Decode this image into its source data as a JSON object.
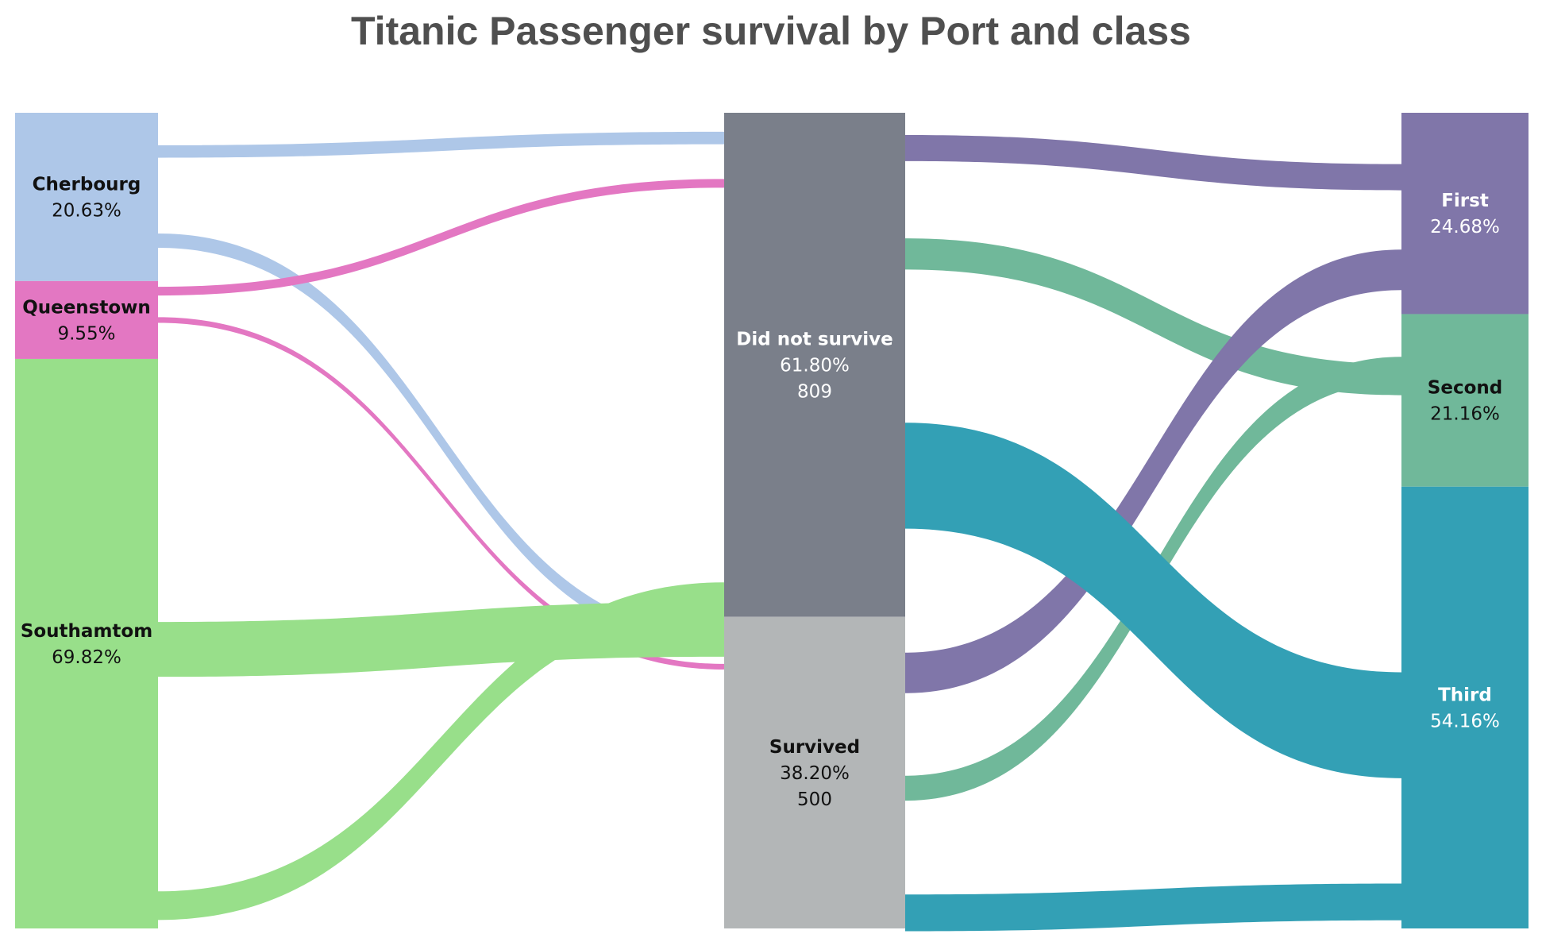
{
  "chart_data": {
    "type": "sankey",
    "title": "Titanic Passenger survival by Port and class",
    "nodes": [
      {
        "id": "cherbourg",
        "name": "Cherbourg",
        "column": "port",
        "pct": "20.63%",
        "color": "#aec7e8",
        "text_color": "#111111"
      },
      {
        "id": "queenstown",
        "name": "Queenstown",
        "column": "port",
        "pct": "9.55%",
        "color": "#e377c2",
        "text_color": "#111111"
      },
      {
        "id": "southampton",
        "name": "Southamtom",
        "column": "port",
        "pct": "69.82%",
        "color": "#98df8a",
        "text_color": "#111111"
      },
      {
        "id": "not_survived",
        "name": "Did not survive",
        "column": "outcome",
        "pct": "61.80%",
        "count": "809",
        "color": "#7a7f8a",
        "text_color": "#ffffff"
      },
      {
        "id": "survived",
        "name": "Survived",
        "column": "outcome",
        "pct": "38.20%",
        "count": "500",
        "color": "#b3b6b7",
        "text_color": "#111111"
      },
      {
        "id": "first",
        "name": "First",
        "column": "class",
        "pct": "24.68%",
        "color": "#8076a9",
        "text_color": "#ffffff"
      },
      {
        "id": "second",
        "name": "Second",
        "column": "class",
        "pct": "21.16%",
        "color": "#70b89a",
        "text_color": "#111111"
      },
      {
        "id": "third",
        "name": "Third",
        "column": "class",
        "pct": "54.16%",
        "color": "#33a0b5",
        "text_color": "#ffffff"
      }
    ],
    "links": [
      {
        "source": "cherbourg",
        "target": "not_survived",
        "value": 20
      },
      {
        "source": "cherbourg",
        "target": "survived",
        "value": 23
      },
      {
        "source": "queenstown",
        "target": "not_survived",
        "value": 14
      },
      {
        "source": "queenstown",
        "target": "survived",
        "value": 9
      },
      {
        "source": "southampton",
        "target": "survived",
        "value": 88
      },
      {
        "source": "southampton",
        "target": "not_survived",
        "value": 46
      },
      {
        "source": "not_survived",
        "target": "first",
        "value": 42
      },
      {
        "source": "not_survived",
        "target": "second",
        "value": 50
      },
      {
        "source": "survived",
        "target": "first",
        "value": 65
      },
      {
        "source": "survived",
        "target": "second",
        "value": 40
      },
      {
        "source": "not_survived",
        "target": "third",
        "value": 170
      },
      {
        "source": "survived",
        "target": "third",
        "value": 59
      }
    ]
  }
}
